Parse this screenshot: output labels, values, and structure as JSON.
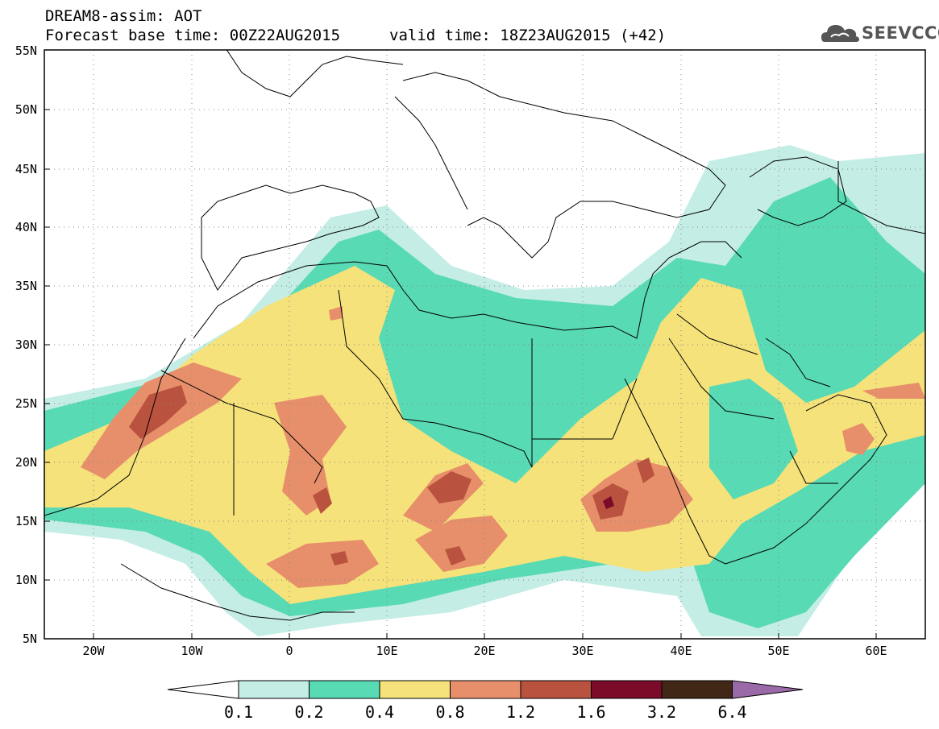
{
  "header": {
    "title_line1": "DREAM8-assim: AOT",
    "title_line2": "Forecast base time: 00Z22AUG2015",
    "valid_time": "valid time: 18Z23AUG2015 (+42)",
    "logo_text": "SEEVCCC"
  },
  "map": {
    "region": "North Africa / Middle East / Mediterranean",
    "lat_ticks": [
      "55N",
      "50N",
      "45N",
      "40N",
      "35N",
      "30N",
      "25N",
      "20N",
      "15N",
      "10N",
      "5N"
    ],
    "lon_ticks": [
      "20W",
      "10W",
      "0",
      "10E",
      "20E",
      "30E",
      "40E",
      "50E",
      "60E"
    ],
    "gridlines": "dotted"
  },
  "colorbar": {
    "labels": [
      "0.1",
      "0.2",
      "0.4",
      "0.8",
      "1.2",
      "1.6",
      "3.2",
      "6.4"
    ],
    "colors": [
      "#c4ede6",
      "#58dab4",
      "#f5e27a",
      "#e78f6a",
      "#b9523e",
      "#7b0b28",
      "#402716"
    ],
    "under_color": "#ffffff",
    "over_color": "#9a6aa8"
  }
}
